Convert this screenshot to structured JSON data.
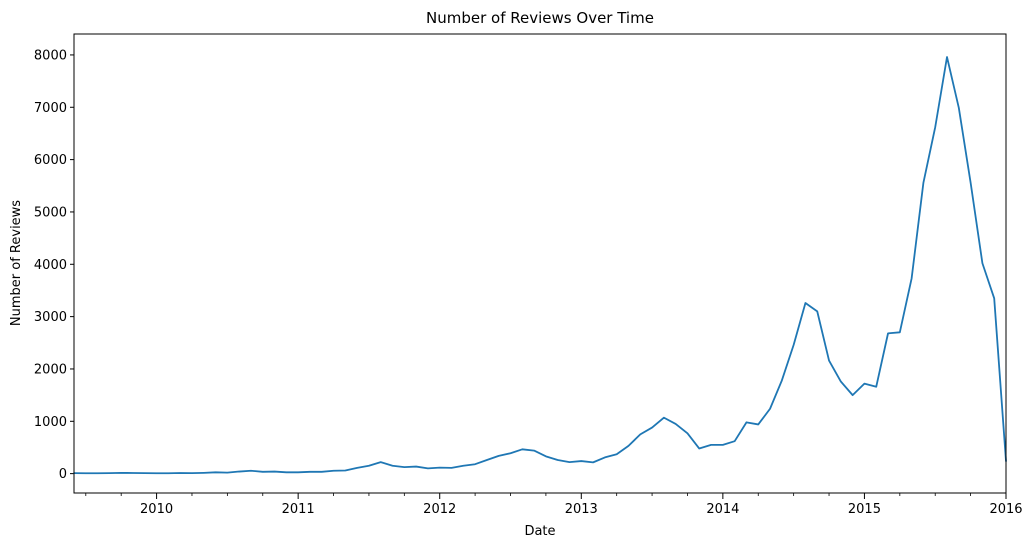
{
  "chart_data": {
    "type": "line",
    "title": "Number of Reviews Over Time",
    "xlabel": "Date",
    "ylabel": "Number of Reviews",
    "xlim": [
      "2009-06",
      "2016-01"
    ],
    "ylim": [
      -370,
      8400
    ],
    "x_ticks": [
      "2010",
      "2011",
      "2012",
      "2013",
      "2014",
      "2015",
      "2016"
    ],
    "y_ticks": [
      0,
      1000,
      2000,
      3000,
      4000,
      5000,
      6000,
      7000,
      8000
    ],
    "grid": false,
    "legend": "none",
    "colors": {
      "line": "#1f77b4"
    },
    "series": [
      {
        "x": [
          "2009-06",
          "2009-07",
          "2009-08",
          "2009-09",
          "2009-10",
          "2009-11",
          "2009-12",
          "2010-01",
          "2010-02",
          "2010-03",
          "2010-04",
          "2010-05",
          "2010-06",
          "2010-07",
          "2010-08",
          "2010-09",
          "2010-10",
          "2010-11",
          "2010-12",
          "2011-01",
          "2011-02",
          "2011-03",
          "2011-04",
          "2011-05",
          "2011-06",
          "2011-07",
          "2011-08",
          "2011-09",
          "2011-10",
          "2011-11",
          "2011-12",
          "2012-01",
          "2012-02",
          "2012-03",
          "2012-04",
          "2012-05",
          "2012-06",
          "2012-07",
          "2012-08",
          "2012-09",
          "2012-10",
          "2012-11",
          "2012-12",
          "2013-01",
          "2013-02",
          "2013-03",
          "2013-04",
          "2013-05",
          "2013-06",
          "2013-07",
          "2013-08",
          "2013-09",
          "2013-10",
          "2013-11",
          "2013-12",
          "2014-01",
          "2014-02",
          "2014-03",
          "2014-04",
          "2014-05",
          "2014-06",
          "2014-07",
          "2014-08",
          "2014-09",
          "2014-10",
          "2014-11",
          "2014-12",
          "2015-01",
          "2015-02",
          "2015-03",
          "2015-04",
          "2015-05",
          "2015-06",
          "2015-07",
          "2015-08",
          "2015-09",
          "2015-10",
          "2015-11",
          "2015-12",
          "2016-01"
        ],
        "values": [
          10,
          8,
          8,
          10,
          15,
          12,
          10,
          8,
          8,
          12,
          10,
          15,
          25,
          20,
          40,
          55,
          35,
          40,
          25,
          25,
          35,
          35,
          55,
          60,
          110,
          150,
          220,
          150,
          125,
          135,
          100,
          115,
          110,
          150,
          180,
          260,
          340,
          390,
          465,
          440,
          330,
          260,
          220,
          240,
          215,
          310,
          370,
          530,
          750,
          880,
          1070,
          950,
          770,
          480,
          550,
          550,
          620,
          980,
          940,
          1240,
          1780,
          2460,
          3260,
          3100,
          2160,
          1760,
          1500,
          1720,
          1660,
          2680,
          2700,
          3730,
          5560,
          6620,
          7960,
          6990,
          5560,
          4020,
          3350,
          240
        ]
      }
    ]
  }
}
